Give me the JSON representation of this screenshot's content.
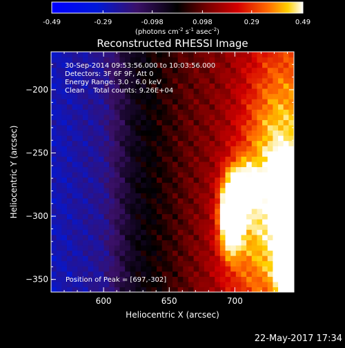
{
  "chart_data": {
    "type": "heatmap",
    "title": "Reconstructed RHESSI Image",
    "xlabel": "Heliocentric X (arcsec)",
    "ylabel": "Heliocentric Y (arcsec)",
    "xlim": [
      560,
      745
    ],
    "ylim": [
      -360,
      -170
    ],
    "xticks": [
      600,
      650,
      700
    ],
    "yticks": [
      -200,
      -250,
      -300,
      -350
    ],
    "colorbar": {
      "range": [
        -0.49,
        0.49
      ],
      "ticks": [
        "-0.49",
        "-0.29",
        "-0.098",
        "0.098",
        "0.29",
        "0.49"
      ],
      "unit_label": "(photons cm",
      "unit_exp1": "-2",
      "unit_mid": " s",
      "unit_exp2": "-1",
      "unit_mid2": " asec",
      "unit_exp3": "-2",
      "unit_end": ")"
    },
    "annotations": [
      "30-Sep-2014 09:53:56.000 to 10:03:56.000",
      "Detectors: 3F 6F 9F, Att 0",
      "Energy Range: 3.0 - 6.0 keV",
      "Clean    Total counts: 9.26E+04"
    ],
    "peak_label": "Position of Peak = [697,-302]",
    "peak": [
      697,
      -302
    ],
    "sources": [
      {
        "x": 697,
        "y": -302,
        "sx": 6,
        "sy": 18,
        "amp": 0.49
      },
      {
        "x": 704,
        "y": -278,
        "sx": 8,
        "sy": 14,
        "amp": 0.3
      },
      {
        "x": 738,
        "y": -275,
        "sx": 7,
        "sy": 14,
        "amp": 0.46
      },
      {
        "x": 742,
        "y": -335,
        "sx": 7,
        "sy": 28,
        "amp": 0.45
      },
      {
        "x": 735,
        "y": -250,
        "sx": 20,
        "sy": 60,
        "amp": 0.24
      },
      {
        "x": 715,
        "y": -320,
        "sx": 22,
        "sy": 50,
        "amp": 0.18
      }
    ]
  },
  "footer_date": "22-May-2017 17:34"
}
